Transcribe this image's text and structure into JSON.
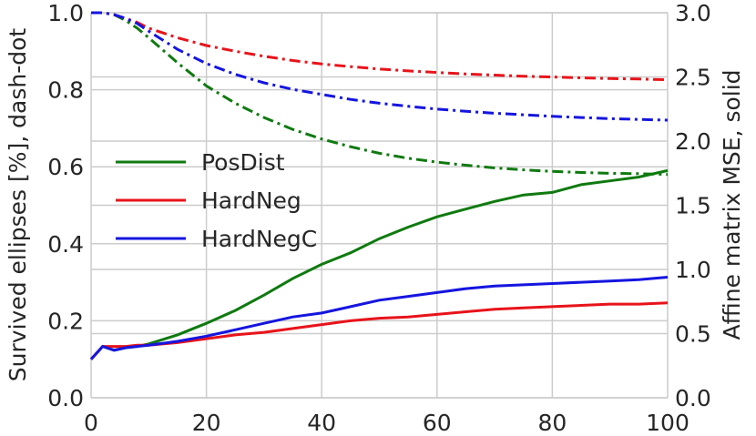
{
  "chart_data": {
    "type": "line",
    "xlabel": "",
    "ylabel_left": "Survived ellipses [%], dash-dot",
    "ylabel_right": "Affine matrix MSE, solid",
    "xlim": [
      0,
      100
    ],
    "ylim_left": [
      0.0,
      1.0
    ],
    "ylim_right": [
      0.0,
      3.0
    ],
    "x_ticks": [
      "0",
      "20",
      "40",
      "60",
      "80",
      "100"
    ],
    "y_left_ticks": [
      "0.0",
      "0.2",
      "0.4",
      "0.6",
      "0.8",
      "1.0"
    ],
    "y_right_ticks": [
      "0.0",
      "0.5",
      "1.0",
      "1.5",
      "2.0",
      "2.5",
      "3.0"
    ],
    "grid": true,
    "legend_position": "center-left",
    "legend": [
      "PosDist",
      "HardNeg",
      "HardNegC"
    ],
    "x": [
      0,
      2,
      4,
      6,
      8,
      10,
      15,
      20,
      25,
      30,
      35,
      40,
      45,
      50,
      55,
      60,
      65,
      70,
      75,
      80,
      85,
      90,
      95,
      100
    ],
    "series": [
      {
        "name": "PosDist",
        "color": "#0f7a0f",
        "survived_dashdot": [
          1.0,
          1.0,
          0.995,
          0.98,
          0.96,
          0.935,
          0.87,
          0.81,
          0.765,
          0.728,
          0.697,
          0.672,
          0.652,
          0.635,
          0.622,
          0.612,
          0.604,
          0.597,
          0.592,
          0.588,
          0.585,
          0.583,
          0.582,
          0.58
        ],
        "mse_solid": [
          0.3,
          0.4,
          0.37,
          0.39,
          0.4,
          0.42,
          0.49,
          0.58,
          0.68,
          0.8,
          0.93,
          1.04,
          1.13,
          1.24,
          1.33,
          1.41,
          1.47,
          1.53,
          1.58,
          1.6,
          1.66,
          1.69,
          1.72,
          1.77
        ]
      },
      {
        "name": "HardNeg",
        "color": "#e8131a",
        "survived_dashdot": [
          1.0,
          1.0,
          0.995,
          0.985,
          0.975,
          0.96,
          0.935,
          0.915,
          0.9,
          0.887,
          0.876,
          0.867,
          0.86,
          0.854,
          0.849,
          0.845,
          0.841,
          0.838,
          0.835,
          0.833,
          0.831,
          0.829,
          0.828,
          0.826
        ],
        "mse_solid": [
          0.3,
          0.4,
          0.4,
          0.4,
          0.41,
          0.41,
          0.43,
          0.46,
          0.49,
          0.51,
          0.54,
          0.57,
          0.6,
          0.62,
          0.63,
          0.65,
          0.67,
          0.69,
          0.7,
          0.71,
          0.72,
          0.73,
          0.73,
          0.74
        ]
      },
      {
        "name": "HardNegC",
        "color": "#1515e0",
        "survived_dashdot": [
          1.0,
          1.0,
          0.995,
          0.985,
          0.972,
          0.952,
          0.905,
          0.868,
          0.84,
          0.818,
          0.801,
          0.788,
          0.775,
          0.765,
          0.757,
          0.75,
          0.744,
          0.739,
          0.735,
          0.731,
          0.728,
          0.725,
          0.723,
          0.721
        ],
        "mse_solid": [
          0.3,
          0.4,
          0.37,
          0.39,
          0.4,
          0.41,
          0.44,
          0.48,
          0.53,
          0.58,
          0.63,
          0.66,
          0.71,
          0.76,
          0.79,
          0.82,
          0.85,
          0.87,
          0.88,
          0.89,
          0.9,
          0.91,
          0.92,
          0.94
        ]
      }
    ]
  }
}
